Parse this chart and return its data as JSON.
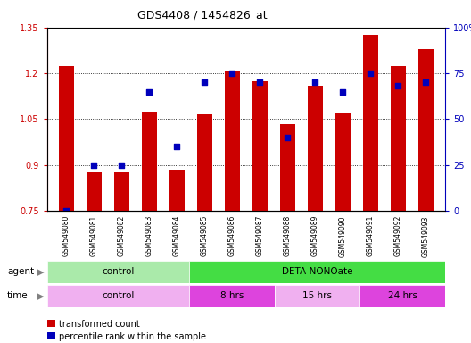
{
  "title": "GDS4408 / 1454826_at",
  "samples": [
    "GSM549080",
    "GSM549081",
    "GSM549082",
    "GSM549083",
    "GSM549084",
    "GSM549085",
    "GSM549086",
    "GSM549087",
    "GSM549088",
    "GSM549089",
    "GSM549090",
    "GSM549091",
    "GSM549092",
    "GSM549093"
  ],
  "bar_values": [
    1.225,
    0.875,
    0.875,
    1.075,
    0.885,
    1.065,
    1.205,
    1.175,
    1.035,
    1.16,
    1.07,
    1.325,
    1.225,
    1.28
  ],
  "dot_percentile": [
    0,
    25,
    25,
    65,
    35,
    70,
    75,
    70,
    40,
    70,
    65,
    75,
    68,
    70
  ],
  "ylim_left": [
    0.75,
    1.35
  ],
  "ylim_right": [
    0,
    100
  ],
  "yticks_left": [
    0.75,
    0.9,
    1.05,
    1.2,
    1.35
  ],
  "yticks_right": [
    0,
    25,
    50,
    75,
    100
  ],
  "bar_color": "#cc0000",
  "dot_color": "#0000bb",
  "agent_groups": [
    {
      "label": "control",
      "start": 0,
      "end": 5,
      "color": "#aaeaaa"
    },
    {
      "label": "DETA-NONOate",
      "start": 5,
      "end": 14,
      "color": "#44dd44"
    }
  ],
  "time_groups": [
    {
      "label": "control",
      "start": 0,
      "end": 5,
      "color": "#f0b0f0"
    },
    {
      "label": "8 hrs",
      "start": 5,
      "end": 8,
      "color": "#dd44dd"
    },
    {
      "label": "15 hrs",
      "start": 8,
      "end": 11,
      "color": "#f0b0f0"
    },
    {
      "label": "24 hrs",
      "start": 11,
      "end": 14,
      "color": "#dd44dd"
    }
  ],
  "legend_bar_label": "transformed count",
  "legend_dot_label": "percentile rank within the sample"
}
